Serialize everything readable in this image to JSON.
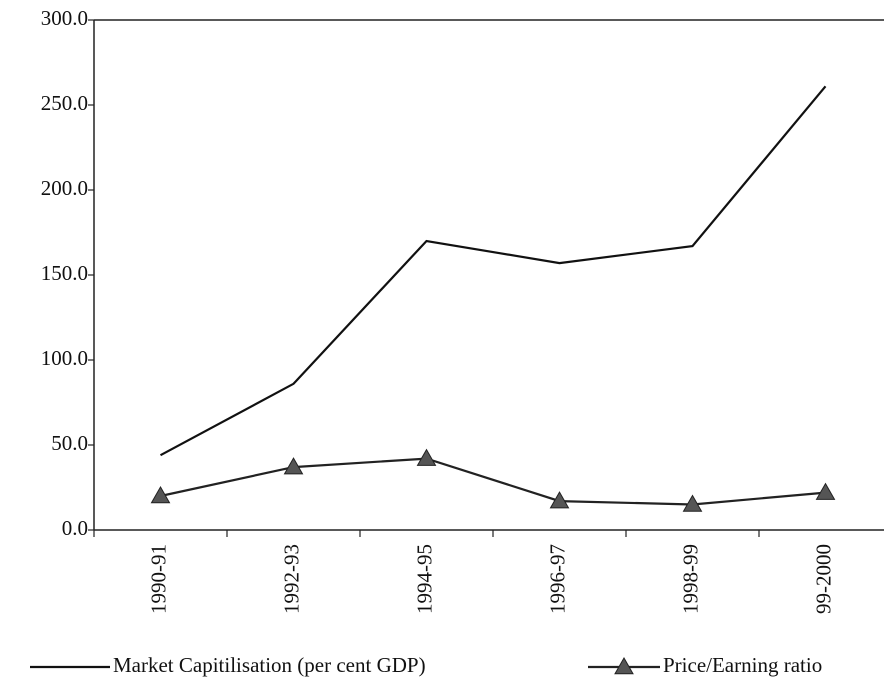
{
  "chart_data": {
    "type": "line",
    "categories": [
      "1990-91",
      "1992-93",
      "1994-95",
      "1996-97",
      "1998-99",
      "99-2000"
    ],
    "series": [
      {
        "name": "Market Capitilisation (per cent GDP)",
        "color": "#111111",
        "marker": "none",
        "values": [
          44,
          86,
          170,
          157,
          167,
          261
        ]
      },
      {
        "name": "Price/Earning ratio",
        "color": "#222222",
        "marker": "triangle",
        "values": [
          20,
          37,
          42,
          17,
          15,
          22
        ]
      }
    ],
    "ylim": [
      0,
      300
    ],
    "yticks": [
      {
        "value": 0,
        "label": "0.0"
      },
      {
        "value": 50,
        "label": "50.0"
      },
      {
        "value": 100,
        "label": "100.0"
      },
      {
        "value": 150,
        "label": "150.0"
      },
      {
        "value": 200,
        "label": "200.0"
      },
      {
        "value": 250,
        "label": "250.0"
      },
      {
        "value": 300,
        "label": "300.0"
      }
    ],
    "grid": false,
    "legend": "bottom"
  }
}
